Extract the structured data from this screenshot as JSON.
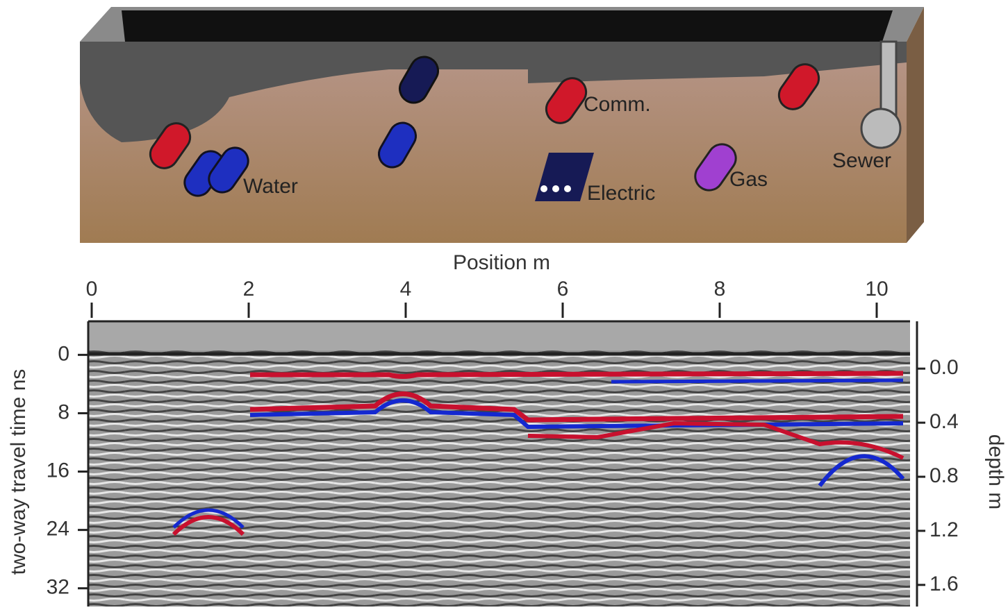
{
  "diagram": {
    "labels": {
      "water": "Water",
      "comm": "Comm.",
      "electric": "Electric",
      "gas": "Gas",
      "sewer": "Sewer"
    }
  },
  "chart_data": {
    "type": "radargram",
    "x_label": "Position m",
    "xlim": [
      0,
      10.4
    ],
    "xticks": [
      0,
      2,
      4,
      6,
      8,
      10
    ],
    "y_label": "two-way travel time ns",
    "ylim": [
      -4.6,
      34.5
    ],
    "yticks": [
      0,
      8,
      16,
      24,
      32
    ],
    "y2_label": "depth m",
    "y2lim": [
      -0.35,
      1.76
    ],
    "y2ticks": [
      {
        "value": 0,
        "label": "0.0"
      },
      0.4,
      0.8,
      1.2,
      1.6
    ]
  }
}
